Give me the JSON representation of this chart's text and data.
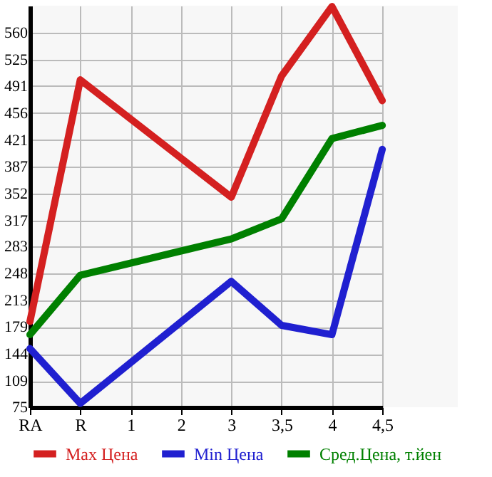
{
  "chart_data": {
    "type": "line",
    "categories": [
      "RA",
      "R",
      "1",
      "2",
      "3",
      "3,5",
      "4",
      "4,5"
    ],
    "series": [
      {
        "name": "Max Цена",
        "color": "#d42020",
        "values": [
          186,
          499,
          null,
          null,
          347,
          504,
          594,
          472
        ]
      },
      {
        "name": "Min Цена",
        "color": "#2020d0",
        "values": [
          151,
          80,
          null,
          null,
          238,
          181,
          169,
          409
        ]
      },
      {
        "name": "Сред.Цена, т.йен",
        "color": "#008000",
        "values": [
          169,
          246,
          null,
          null,
          293,
          319,
          423,
          440
        ]
      }
    ],
    "ylim": [
      75,
      595
    ],
    "yticks": [
      75,
      109,
      144,
      179,
      213,
      248,
      283,
      317,
      352,
      387,
      421,
      456,
      491,
      525,
      560
    ],
    "grid": true,
    "legend": "bottom",
    "marker": "none",
    "line_style": "solid"
  }
}
